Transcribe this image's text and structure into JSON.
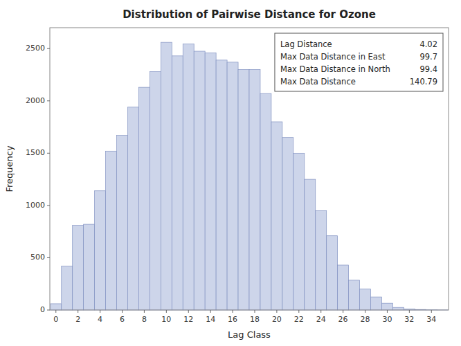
{
  "chart_data": {
    "type": "bar",
    "title": "Distribution of Pairwise Distance for Ozone",
    "x_label": "Lag Class",
    "y_label": "Frequency",
    "color": "#cdd5ea",
    "x": [
      0,
      1,
      2,
      3,
      4,
      5,
      6,
      7,
      8,
      9,
      10,
      11,
      12,
      13,
      14,
      15,
      16,
      17,
      18,
      19,
      20,
      21,
      22,
      23,
      24,
      25,
      26,
      27,
      28,
      29,
      30,
      31,
      32,
      33,
      34,
      35
    ],
    "values": [
      60,
      420,
      810,
      820,
      1140,
      1520,
      1670,
      1940,
      2130,
      2280,
      2560,
      2430,
      2545,
      2475,
      2460,
      2390,
      2370,
      2300,
      2300,
      2070,
      1800,
      1650,
      1500,
      1250,
      950,
      710,
      430,
      285,
      200,
      125,
      65,
      25,
      10,
      5,
      2,
      1
    ],
    "xlim": [
      -0.55,
      35.55
    ],
    "ylim": [
      0,
      2700
    ],
    "xticks": [
      0,
      2,
      4,
      6,
      8,
      10,
      12,
      14,
      16,
      18,
      20,
      22,
      24,
      26,
      28,
      30,
      32,
      34
    ],
    "yticks": [
      0,
      500,
      1000,
      1500,
      2000,
      2500
    ],
    "grid": false,
    "annotations": [
      {
        "text": "Lag Distance",
        "value": 4.02
      },
      {
        "text": "Max Data Distance in East",
        "value": 99.7
      },
      {
        "text": "Max Data Distance in North",
        "value": 99.4
      },
      {
        "text": "Max Data Distance",
        "value": 140.79
      }
    ]
  }
}
